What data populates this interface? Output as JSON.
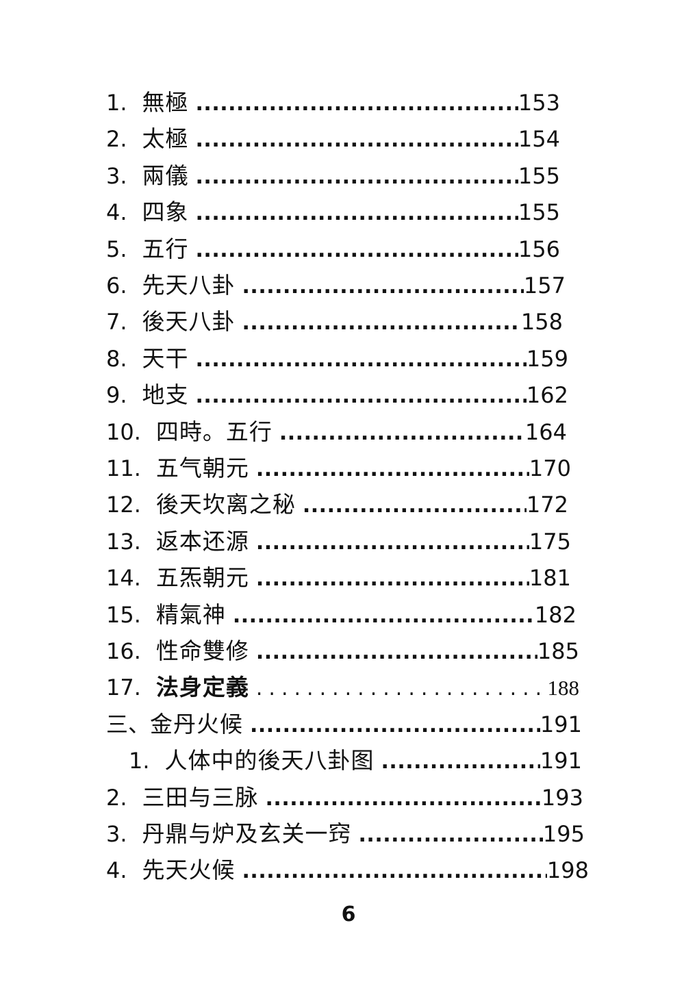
{
  "toc": [
    {
      "num": "1.",
      "title": "無極",
      "page": "153"
    },
    {
      "num": "2.",
      "title": "太極",
      "page": "154"
    },
    {
      "num": "3.",
      "title": "兩儀",
      "page": "155"
    },
    {
      "num": "4.",
      "title": "四象",
      "page": "155"
    },
    {
      "num": "5.",
      "title": "五行",
      "page": "156"
    },
    {
      "num": "6.",
      "title": "先天八卦",
      "page": "157"
    },
    {
      "num": "7.",
      "title": "後天八卦",
      "page": "158"
    },
    {
      "num": "8.",
      "title": "天干",
      "page": "159"
    },
    {
      "num": "9.",
      "title": "地支",
      "page": "162"
    },
    {
      "num": "10.",
      "title": "四時。五行",
      "page": "164"
    },
    {
      "num": "11.",
      "title": "五气朝元",
      "page": "170"
    },
    {
      "num": "12.",
      "title": "後天坎离之秘",
      "page": "172"
    },
    {
      "num": "13.",
      "title": "返本还源",
      "page": "175"
    },
    {
      "num": "14.",
      "title": "五炁朝元",
      "page": "181"
    },
    {
      "num": "15.",
      "title": "精氣神",
      "page": "182"
    },
    {
      "num": "16.",
      "title": "性命雙修",
      "page": "185"
    },
    {
      "num": "17.",
      "title": "法身定義",
      "page": "188"
    },
    {
      "num": "三、",
      "title": "金丹火候",
      "page": "191"
    },
    {
      "num": "1.",
      "title": "人体中的後天八卦图",
      "page": "191"
    },
    {
      "num": "2.",
      "title": "三田与三脉",
      "page": "193"
    },
    {
      "num": "3.",
      "title": "丹鼎与炉及玄关一窍",
      "page": "195"
    },
    {
      "num": "4.",
      "title": "先天火候",
      "page": "198"
    }
  ],
  "footer": {
    "page_number": "6"
  }
}
